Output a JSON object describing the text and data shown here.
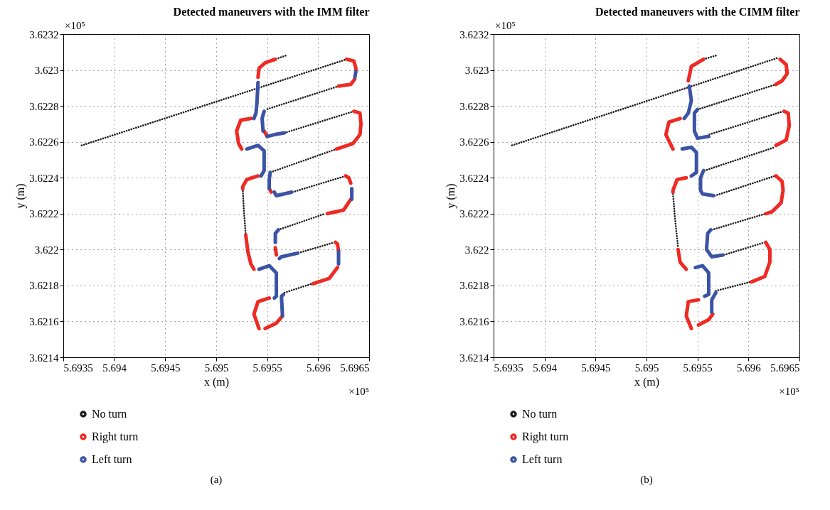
{
  "chart_data": [
    {
      "type": "line",
      "title": "Detected maneuvers with the IMM filter",
      "xlabel": "x (m)",
      "ylabel": "y (m)",
      "xlim": [
        5.6935,
        5.6965
      ],
      "ylim": [
        3.6214,
        3.6232
      ],
      "xticks": [
        5.6935,
        5.694,
        5.6945,
        5.695,
        5.6955,
        5.696,
        5.6965
      ],
      "yticks": [
        3.6214,
        3.6216,
        3.6218,
        3.622,
        3.6222,
        3.6224,
        3.6226,
        3.6228,
        3.623,
        3.6232
      ],
      "grid": true,
      "legend": "bottom",
      "annotations": [
        "×10⁵",
        "×10⁵",
        "(a)"
      ],
      "series": [
        {
          "name": "No turn",
          "color": "#1a1a1a",
          "line_style": "dotted",
          "x": [
            5.69368,
            5.69628,
            null,
            5.69568,
            5.69558,
            null,
            5.6962,
            5.69549,
            null,
            5.69567,
            5.69635,
            null,
            5.69618,
            5.69553,
            null,
            5.69575,
            5.69627,
            null,
            5.69526,
            5.69527,
            5.69529,
            null,
            5.69567,
            5.69594,
            null,
            5.69616,
            5.6958,
            null,
            5.69561,
            5.69607
          ],
          "values": [
            3.62258,
            3.62306,
            null,
            3.62308,
            3.62306,
            null,
            3.62291,
            3.62278,
            null,
            3.62265,
            3.62277,
            null,
            3.62256,
            3.62243,
            null,
            3.62232,
            3.62241,
            null,
            3.62234,
            3.62223,
            3.62208,
            null,
            3.62176,
            3.62181,
            null,
            3.62204,
            3.62198,
            null,
            3.62211,
            3.6222
          ]
        },
        {
          "name": "Right turn",
          "color": "#ee2a24",
          "line_style": "solid",
          "x": [
            5.69558,
            5.69548,
            5.69542,
            5.69541,
            null,
            5.69628,
            5.69635,
            5.69637,
            5.69637,
            null,
            5.69636,
            5.69632,
            5.6962,
            null,
            5.69534,
            5.69524,
            5.6952,
            5.69522,
            5.69525,
            null,
            5.69547,
            5.6955,
            null,
            5.69635,
            5.69641,
            5.69642,
            5.69641,
            5.69634,
            5.69618,
            null,
            5.69541,
            5.6953,
            5.69526,
            5.69526,
            null,
            5.69627,
            5.6963,
            5.69632,
            null,
            5.69632,
            5.69625,
            5.69609,
            null,
            5.69529,
            5.69531,
            5.69534,
            5.69537,
            null,
            5.69552,
            5.69541,
            5.69537,
            5.69542,
            null,
            5.69548,
            5.69559,
            5.69565,
            null,
            5.69595,
            5.69611,
            5.69619,
            null,
            5.6962,
            5.69619,
            5.69617,
            null,
            5.69558,
            5.69559,
            null,
            5.69552,
            5.69554
          ],
          "values": [
            3.62306,
            3.62304,
            3.62301,
            3.62296,
            null,
            3.62306,
            3.62305,
            3.62301,
            3.623,
            null,
            3.62295,
            3.62292,
            3.62291,
            null,
            3.62273,
            3.62272,
            3.62266,
            3.62259,
            3.62256,
            null,
            3.62266,
            3.62263,
            null,
            3.62277,
            3.62276,
            3.6227,
            3.62264,
            3.62259,
            3.62256,
            null,
            3.62241,
            3.62239,
            3.62235,
            3.62234,
            null,
            3.62241,
            3.6224,
            3.62237,
            null,
            3.62228,
            3.62222,
            3.6222,
            null,
            3.62208,
            3.62199,
            3.62192,
            3.62189,
            null,
            3.62173,
            3.62171,
            3.62164,
            3.62156,
            null,
            3.62156,
            3.62159,
            3.62163,
            null,
            3.62181,
            3.62184,
            3.6219,
            null,
            3.62199,
            3.62203,
            3.62204,
            null,
            3.62201,
            3.62197,
            null,
            3.62234,
            3.62232
          ]
        },
        {
          "name": "Left turn",
          "color": "#3a53a4",
          "line_style": "solid",
          "x": [
            5.69541,
            5.6954,
            5.69539,
            5.69537,
            null,
            5.69637,
            5.69636,
            null,
            5.69547,
            5.69545,
            5.69546,
            null,
            5.6955,
            5.69557,
            5.69567,
            null,
            5.6953,
            5.69541,
            5.69547,
            5.69547,
            5.69544,
            null,
            5.69553,
            5.69552,
            5.69552,
            null,
            5.69557,
            5.69559,
            5.69574,
            null,
            5.69633,
            5.69633,
            null,
            5.69542,
            5.69552,
            5.69559,
            5.69559,
            5.69557,
            null,
            5.69565,
            5.69564,
            5.69566,
            null,
            5.6962,
            5.6962,
            null,
            5.6958,
            5.69564,
            5.69562,
            null,
            5.69558,
            5.69558,
            5.69561
          ],
          "values": [
            3.62293,
            3.62282,
            3.62276,
            3.62273,
            null,
            3.62299,
            3.62296,
            null,
            3.62277,
            3.62273,
            3.62266,
            null,
            3.62263,
            3.62264,
            3.62265,
            null,
            3.62256,
            3.62258,
            3.62255,
            3.62244,
            3.62241,
            null,
            3.62243,
            3.62239,
            3.62234,
            null,
            3.62232,
            3.6223,
            3.62232,
            null,
            3.62234,
            3.62228,
            null,
            3.62189,
            3.62191,
            3.62187,
            3.62174,
            3.62173,
            null,
            3.62163,
            3.62174,
            3.62175,
            null,
            3.62192,
            3.62199,
            null,
            3.62198,
            3.62196,
            3.62195,
            null,
            3.62204,
            3.62209,
            3.62211
          ]
        }
      ]
    },
    {
      "type": "line",
      "title": "Detected maneuvers with the CIMM filter",
      "xlabel": "x (m)",
      "ylabel": "y (m)",
      "xlim": [
        5.6935,
        5.6965
      ],
      "ylim": [
        3.6214,
        3.6232
      ],
      "xticks": [
        5.6935,
        5.694,
        5.6945,
        5.695,
        5.6955,
        5.696,
        5.6965
      ],
      "yticks": [
        3.6214,
        3.6216,
        3.6218,
        3.622,
        3.6222,
        3.6224,
        3.6226,
        3.6228,
        3.623,
        3.6232
      ],
      "grid": true,
      "legend": "bottom",
      "annotations": [
        "×10⁵",
        "×10⁵",
        "(b)"
      ],
      "series": [
        {
          "name": "No turn",
          "color": "#1a1a1a",
          "line_style": "dotted",
          "x": [
            5.69368,
            5.6963,
            null,
            5.69568,
            5.69556,
            null,
            5.69627,
            5.6955,
            null,
            5.69634,
            5.69561,
            null,
            5.69557,
            5.69626,
            null,
            5.69567,
            5.69626,
            null,
            5.69526,
            5.69528,
            5.69531,
            null,
            5.69568,
            5.69602,
            null,
            5.69616,
            5.69576,
            null,
            5.69564,
            5.69617
          ],
          "values": [
            3.62258,
            3.62307,
            null,
            3.62308,
            3.62306,
            null,
            3.62292,
            3.62278,
            null,
            3.62277,
            3.62264,
            null,
            3.62244,
            3.62257,
            null,
            3.6223,
            3.62241,
            null,
            3.62231,
            3.62217,
            3.62201,
            null,
            3.62177,
            3.62182,
            null,
            3.62204,
            3.62197,
            null,
            3.62211,
            3.6222
          ]
        },
        {
          "name": "Right turn",
          "color": "#ee2a24",
          "line_style": "solid",
          "x": [
            5.69631,
            5.69637,
            5.69638,
            5.69633,
            5.69627,
            null,
            5.69556,
            5.69544,
            5.69541,
            null,
            5.69533,
            5.69522,
            5.69519,
            5.69526,
            null,
            5.69539,
            5.6953,
            5.69526,
            5.69526,
            null,
            5.69531,
            5.69533,
            5.69539,
            null,
            5.69551,
            5.69541,
            5.69539,
            5.69544,
            null,
            5.69551,
            5.69561,
            5.69565,
            null,
            5.69603,
            5.69616,
            5.69621,
            5.69621,
            5.69617,
            null,
            5.69627,
            5.69633,
            5.69634,
            5.69632,
            5.69623,
            5.69617,
            null,
            5.69627,
            5.69637,
            5.6964,
            5.69639,
            5.69635
          ],
          "values": [
            3.62306,
            3.62303,
            3.62298,
            3.62294,
            3.62292,
            null,
            3.62306,
            3.62302,
            3.62294,
            null,
            3.62273,
            3.62271,
            3.62264,
            3.62256,
            null,
            3.6224,
            3.62239,
            3.62233,
            3.62232,
            null,
            3.622,
            3.62193,
            3.62189,
            null,
            3.62172,
            3.62171,
            3.62163,
            3.62156,
            null,
            3.62158,
            3.62161,
            3.62164,
            null,
            3.62182,
            3.62185,
            3.62193,
            3.622,
            3.62204,
            null,
            3.62241,
            3.62238,
            3.62233,
            3.62226,
            3.62221,
            3.6222,
            null,
            3.62258,
            3.62261,
            3.62269,
            3.62276,
            3.62277
          ]
        },
        {
          "name": "Left turn",
          "color": "#3a53a4",
          "line_style": "solid",
          "x": [
            5.69542,
            5.69544,
            5.69541,
            5.69537,
            null,
            5.69535,
            5.69544,
            5.69549,
            5.69549,
            5.69544,
            null,
            5.69548,
            5.69555,
            5.69561,
            5.69561,
            5.69557,
            null,
            5.69564,
            5.69564,
            5.69568,
            null,
            5.69575,
            5.69564,
            5.69559,
            null,
            5.69559,
            5.6956,
            5.69563,
            null,
            5.69556,
            5.69553,
            5.69553,
            5.69555,
            5.69566,
            null,
            5.69561,
            5.6955,
            5.69547,
            5.69547,
            5.6955
          ],
          "values": [
            3.62291,
            3.62283,
            3.62276,
            3.62273,
            null,
            3.62256,
            3.62257,
            3.62254,
            3.62243,
            3.62241,
            null,
            3.6219,
            3.62191,
            3.62187,
            3.62175,
            3.62174,
            null,
            3.62165,
            3.62172,
            3.62176,
            null,
            3.62197,
            3.62196,
            3.622,
            null,
            3.62201,
            3.62209,
            3.62211,
            null,
            3.62244,
            3.6224,
            3.62233,
            3.62231,
            3.6223,
            null,
            3.62263,
            3.62262,
            3.62266,
            3.62276,
            3.62278
          ]
        }
      ]
    }
  ]
}
